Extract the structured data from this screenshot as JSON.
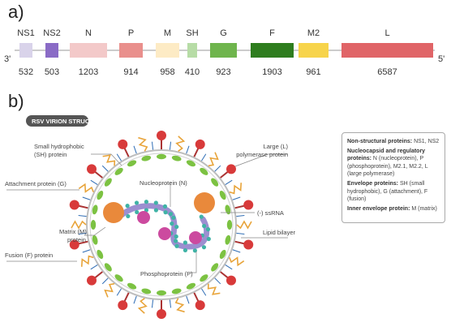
{
  "panel_a": {
    "label": "a)",
    "left_end": "3'",
    "right_end": "5'",
    "genes": [
      {
        "name": "NS1",
        "length": "532",
        "color": "#d9d3ea"
      },
      {
        "name": "NS2",
        "length": "503",
        "color": "#8a6bc6"
      },
      {
        "name": "N",
        "length": "1203",
        "color": "#f3c9c9"
      },
      {
        "name": "P",
        "length": "914",
        "color": "#e98f8c"
      },
      {
        "name": "M",
        "length": "958",
        "color": "#fdebc5"
      },
      {
        "name": "SH",
        "length": "410",
        "color": "#b7dca6"
      },
      {
        "name": "G",
        "length": "923",
        "color": "#6fb54d"
      },
      {
        "name": "F",
        "length": "1903",
        "color": "#2e7d1e"
      },
      {
        "name": "M2",
        "length": "961",
        "color": "#f7d44b"
      },
      {
        "name": "L",
        "length": "6587",
        "color": "#e06467"
      }
    ]
  },
  "panel_b": {
    "label": "b)",
    "badge": "RSV VIRION STRUCTURE",
    "callouts": {
      "sh_1": "Small hydrophobic",
      "sh_2": "(SH) protein",
      "l_1": "Large (L)",
      "l_2": "polymerase protein",
      "g": "Attachment protein (G)",
      "n": "Nucleoprotein (N)",
      "ssrna": "(-) ssRNA",
      "m_1": "Matrix (M)",
      "m_2": "protein",
      "lipid": "Lipid bilayer",
      "f": "Fusion (F) protein",
      "p": "Phosphoprotein (P)"
    },
    "legend": {
      "nonstructural_head": "Non-structural proteins:",
      "nonstructural_text": "NS1, NS2",
      "nucleocapsid_head": "Nucleocapsid and regulatory proteins:",
      "nucleocapsid_text": "N (nucleoprotein), P (phosphoprotein), M2.1, M2.2, L (large polymerase)",
      "envelope_head": "Envelope proteins:",
      "envelope_text": "SH (small hydrophobic), G (attachment), F (fusion)",
      "inner_head": "Inner envelope protein:",
      "inner_text": "M (matrix)"
    },
    "colors": {
      "f_protein": "#d83a3a",
      "g_protein": "#e8a43a",
      "m_protein": "#7cc242",
      "sh_protein": "#2f6db5",
      "n_protein": "#3fb3a6",
      "p_protein": "#cc4a9f",
      "l_protein": "#e9893b",
      "rna": "#9c8fd0",
      "badge": "#555555"
    }
  }
}
